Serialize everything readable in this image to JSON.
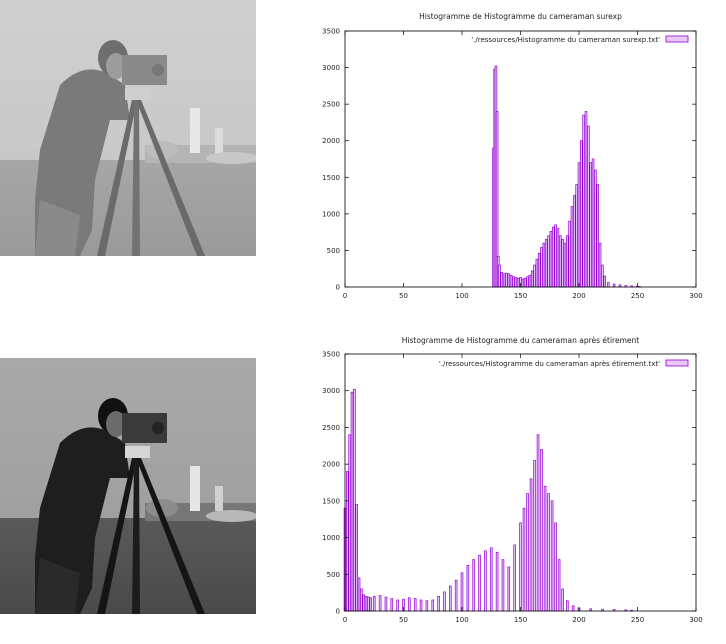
{
  "chart_data": [
    {
      "type": "bar",
      "title": "Histogramme de Histogramme du cameraman surexp",
      "legend": "'./ressources/Histogramme du cameraman surexp.txt'",
      "legend_position": "top-right",
      "color": "#9400d3",
      "xlim": [
        0,
        300
      ],
      "ylim": [
        0,
        3500
      ],
      "xticks": [
        0,
        50,
        100,
        150,
        200,
        250,
        300
      ],
      "yticks": [
        0,
        500,
        1000,
        1500,
        2000,
        2500,
        3000,
        3500
      ],
      "x": [
        127,
        128,
        129,
        130,
        131,
        132,
        134,
        136,
        138,
        140,
        142,
        144,
        146,
        148,
        150,
        152,
        154,
        156,
        158,
        160,
        162,
        164,
        166,
        168,
        170,
        172,
        174,
        176,
        178,
        180,
        182,
        184,
        186,
        188,
        190,
        192,
        194,
        196,
        198,
        200,
        202,
        204,
        206,
        208,
        210,
        212,
        214,
        216,
        218,
        220,
        222,
        225,
        230,
        235,
        240,
        245,
        250,
        252
      ],
      "values": [
        1900,
        2980,
        3020,
        2400,
        420,
        300,
        200,
        180,
        190,
        180,
        160,
        140,
        130,
        120,
        130,
        110,
        120,
        140,
        160,
        220,
        300,
        380,
        460,
        540,
        600,
        650,
        700,
        760,
        820,
        850,
        800,
        700,
        650,
        600,
        700,
        900,
        1100,
        1250,
        1400,
        1700,
        2000,
        2350,
        2400,
        2200,
        1700,
        1750,
        1600,
        1400,
        600,
        300,
        150,
        60,
        40,
        30,
        20,
        15,
        10,
        5
      ]
    },
    {
      "type": "bar",
      "title": "Histogramme de Histogramme du cameraman après étirement",
      "legend": "'./ressources/Histogramme du cameraman après étirement.txt'",
      "legend_position": "top-right",
      "color": "#9400d3",
      "xlim": [
        0,
        300
      ],
      "ylim": [
        0,
        3500
      ],
      "xticks": [
        0,
        50,
        100,
        150,
        200,
        250,
        300
      ],
      "yticks": [
        0,
        500,
        1000,
        1500,
        2000,
        2500,
        3000,
        3500
      ],
      "x": [
        0,
        2,
        4,
        6,
        8,
        10,
        12,
        14,
        16,
        18,
        20,
        22,
        25,
        30,
        35,
        40,
        45,
        50,
        55,
        60,
        65,
        70,
        75,
        80,
        85,
        90,
        95,
        100,
        105,
        110,
        115,
        120,
        125,
        130,
        135,
        140,
        145,
        150,
        153,
        156,
        159,
        162,
        165,
        168,
        171,
        174,
        177,
        180,
        183,
        186,
        190,
        195,
        200,
        210,
        220,
        230,
        240,
        245
      ],
      "values": [
        1400,
        1900,
        2400,
        2980,
        3020,
        1450,
        450,
        300,
        220,
        200,
        190,
        180,
        200,
        210,
        190,
        170,
        150,
        160,
        180,
        170,
        150,
        140,
        150,
        200,
        260,
        340,
        420,
        520,
        620,
        700,
        760,
        820,
        860,
        800,
        700,
        600,
        900,
        1200,
        1400,
        1600,
        1800,
        2050,
        2400,
        2200,
        1700,
        1600,
        1500,
        1200,
        700,
        300,
        140,
        70,
        40,
        30,
        25,
        20,
        15,
        10
      ]
    }
  ]
}
